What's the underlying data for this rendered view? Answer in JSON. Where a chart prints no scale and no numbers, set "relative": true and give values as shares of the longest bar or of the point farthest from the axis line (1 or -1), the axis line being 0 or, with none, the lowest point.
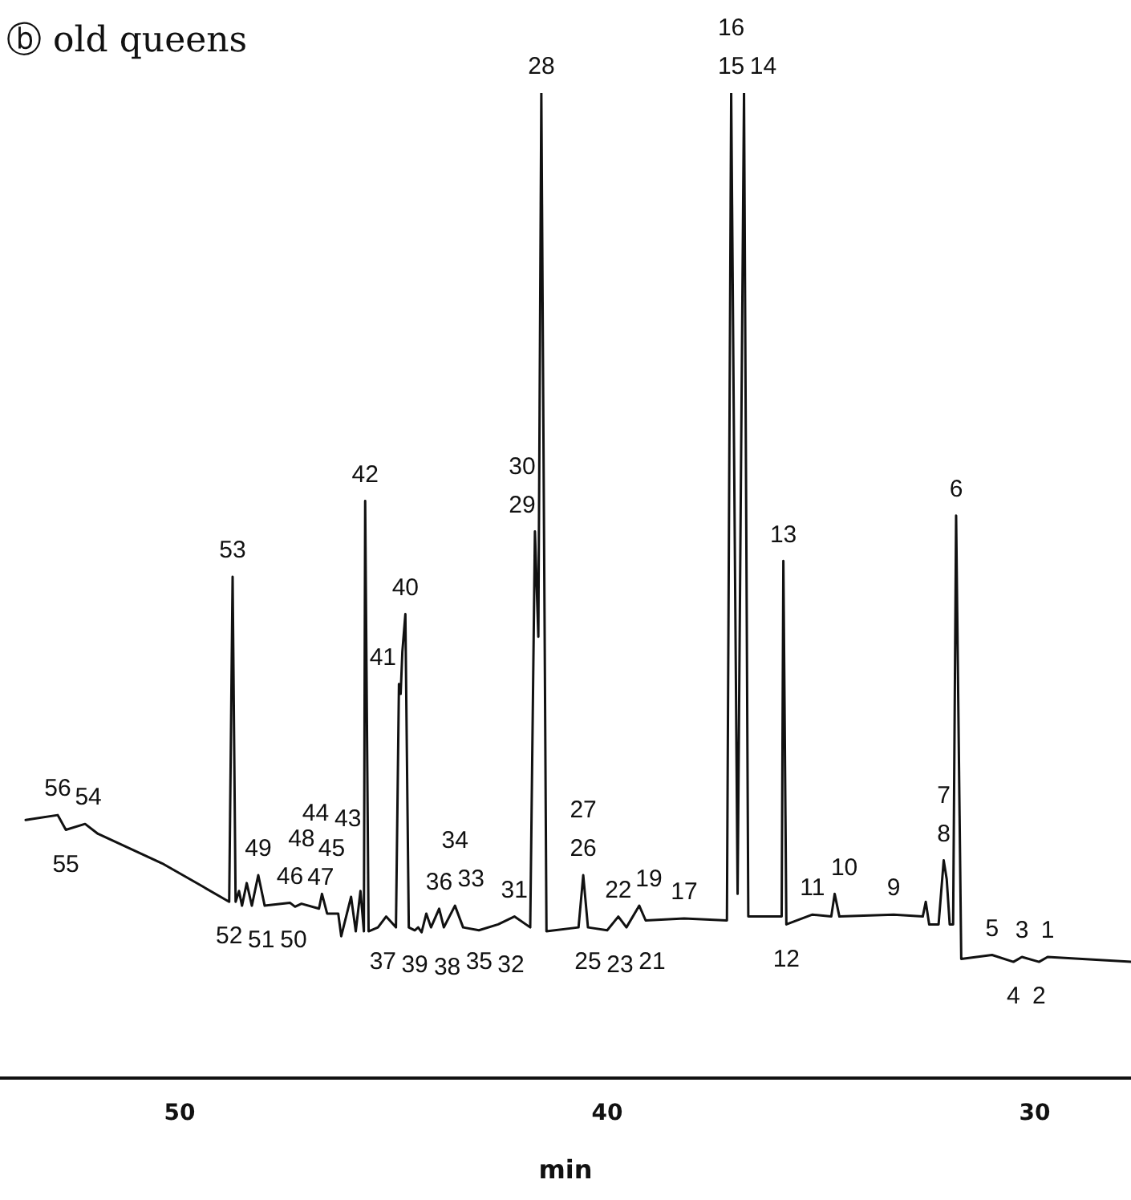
{
  "chart_data": {
    "type": "line",
    "title": "ⓑ old queens",
    "xlabel": "min",
    "relative": true,
    "xlim": [
      54.2,
      27.75
    ],
    "xticks": [
      50,
      40,
      30
    ],
    "grid": false,
    "legend": false,
    "marker": "none",
    "line_style": "solid",
    "x": [
      53.6,
      52.85,
      52.66,
      52.21,
      51.91,
      50.41,
      49.48,
      48.84,
      48.76,
      48.69,
      48.61,
      48.54,
      48.43,
      48.31,
      48.16,
      48.01,
      47.42,
      47.3,
      47.15,
      46.74,
      46.67,
      46.55,
      46.29,
      46.22,
      45.99,
      45.88,
      45.77,
      45.69,
      45.66,
      45.58,
      45.36,
      45.17,
      44.94,
      44.87,
      44.83,
      44.79,
      44.72,
      44.64,
      44.5,
      44.42,
      44.34,
      44.23,
      44.12,
      43.93,
      43.82,
      43.56,
      43.37,
      43.0,
      42.55,
      42.17,
      41.8,
      41.69,
      41.61,
      41.54,
      41.42,
      40.67,
      40.56,
      40.45,
      40.0,
      39.74,
      39.55,
      39.25,
      39.1,
      38.2,
      37.2,
      37.1,
      36.95,
      36.8,
      36.7,
      35.92,
      35.88,
      35.81,
      35.2,
      34.76,
      34.68,
      34.57,
      33.3,
      32.62,
      32.55,
      32.47,
      32.25,
      32.13,
      32.06,
      31.99,
      31.91,
      31.84,
      31.72,
      31.0,
      30.5,
      30.3,
      29.9,
      29.7,
      27.75
    ],
    "series": [
      {
        "color": "#111111",
        "values": [
          0.262,
          0.267,
          0.252,
          0.258,
          0.248,
          0.218,
          0.195,
          0.179,
          0.509,
          0.179,
          0.19,
          0.175,
          0.198,
          0.175,
          0.206,
          0.175,
          0.178,
          0.174,
          0.177,
          0.172,
          0.187,
          0.167,
          0.167,
          0.144,
          0.184,
          0.149,
          0.19,
          0.149,
          0.586,
          0.149,
          0.153,
          0.164,
          0.153,
          0.4,
          0.39,
          0.433,
          0.471,
          0.153,
          0.15,
          0.153,
          0.148,
          0.167,
          0.153,
          0.172,
          0.153,
          0.175,
          0.153,
          0.15,
          0.156,
          0.164,
          0.153,
          0.555,
          0.448,
          1,
          0.149,
          0.153,
          0.206,
          0.153,
          0.15,
          0.164,
          0.153,
          0.175,
          0.16,
          0.162,
          0.16,
          1,
          0.187,
          1,
          0.164,
          0.164,
          0.525,
          0.156,
          0.166,
          0.164,
          0.187,
          0.164,
          0.166,
          0.164,
          0.179,
          0.156,
          0.156,
          0.221,
          0.202,
          0.156,
          0.156,
          0.571,
          0.121,
          0.125,
          0.118,
          0.123,
          0.118,
          0.123,
          0.118
        ]
      }
    ],
    "annotations": [
      {
        "text": "56",
        "x": 52.85,
        "y": 0.267
      },
      {
        "text": "55",
        "x": 52.66,
        "y": 0.252
      },
      {
        "text": "54",
        "x": 52.21,
        "y": 0.258
      },
      {
        "text": "53",
        "x": 48.76,
        "y": 0.509
      },
      {
        "text": "52",
        "x": 48.84,
        "y": 0.179
      },
      {
        "text": "51",
        "x": 48.54,
        "y": 0.175
      },
      {
        "text": "50",
        "x": 48.01,
        "y": 0.175
      },
      {
        "text": "49",
        "x": 48.16,
        "y": 0.206
      },
      {
        "text": "46",
        "x": 47.42,
        "y": 0.178
      },
      {
        "text": "47",
        "x": 47.15,
        "y": 0.177
      },
      {
        "text": "48",
        "x": 47.15,
        "y": 0.177
      },
      {
        "text": "45",
        "x": 46.67,
        "y": 0.187
      },
      {
        "text": "43",
        "x": 45.99,
        "y": 0.184
      },
      {
        "text": "44",
        "x": 45.77,
        "y": 0.19
      },
      {
        "text": "42",
        "x": 45.66,
        "y": 0.586
      },
      {
        "text": "41",
        "x": 44.87,
        "y": 0.4
      },
      {
        "text": "40",
        "x": 44.72,
        "y": 0.471
      },
      {
        "text": "39",
        "x": 44.5,
        "y": 0.15
      },
      {
        "text": "38",
        "x": 44.34,
        "y": 0.148
      },
      {
        "text": "37",
        "x": 44.12,
        "y": 0.153
      },
      {
        "text": "36",
        "x": 43.93,
        "y": 0.172
      },
      {
        "text": "35",
        "x": 43.82,
        "y": 0.153
      },
      {
        "text": "33",
        "x": 43.56,
        "y": 0.175
      },
      {
        "text": "34",
        "x": 43.56,
        "y": 0.175
      },
      {
        "text": "32",
        "x": 43.0,
        "y": 0.15
      },
      {
        "text": "31",
        "x": 42.17,
        "y": 0.164
      },
      {
        "text": "29",
        "x": 41.69,
        "y": 0.555
      },
      {
        "text": "30",
        "x": 41.69,
        "y": 0.555
      },
      {
        "text": "28",
        "x": 41.54,
        "y": 1
      },
      {
        "text": "26",
        "x": 40.56,
        "y": 0.206
      },
      {
        "text": "27",
        "x": 40.56,
        "y": 0.206
      },
      {
        "text": "25",
        "x": 40.45,
        "y": 0.153
      },
      {
        "text": "23",
        "x": 40.0,
        "y": 0.15
      },
      {
        "text": "22",
        "x": 39.74,
        "y": 0.164
      },
      {
        "text": "21",
        "x": 39.55,
        "y": 0.153
      },
      {
        "text": "19",
        "x": 39.25,
        "y": 0.175
      },
      {
        "text": "17",
        "x": 38.2,
        "y": 0.162
      },
      {
        "text": "15",
        "x": 37.1,
        "y": 1
      },
      {
        "text": "16",
        "x": 37.1,
        "y": 1
      },
      {
        "text": "14",
        "x": 36.8,
        "y": 1
      },
      {
        "text": "13",
        "x": 35.88,
        "y": 0.525
      },
      {
        "text": "12",
        "x": 35.81,
        "y": 0.156
      },
      {
        "text": "11",
        "x": 35.2,
        "y": 0.166
      },
      {
        "text": "10",
        "x": 34.68,
        "y": 0.187
      },
      {
        "text": "9",
        "x": 33.3,
        "y": 0.166
      },
      {
        "text": "8",
        "x": 32.13,
        "y": 0.221
      },
      {
        "text": "7",
        "x": 32.13,
        "y": 0.221
      },
      {
        "text": "6",
        "x": 31.84,
        "y": 0.571
      },
      {
        "text": "5",
        "x": 31.0,
        "y": 0.125
      },
      {
        "text": "4",
        "x": 30.5,
        "y": 0.118
      },
      {
        "text": "3",
        "x": 30.3,
        "y": 0.123
      },
      {
        "text": "2",
        "x": 29.9,
        "y": 0.118
      },
      {
        "text": "1",
        "x": 29.7,
        "y": 0.123
      }
    ]
  }
}
